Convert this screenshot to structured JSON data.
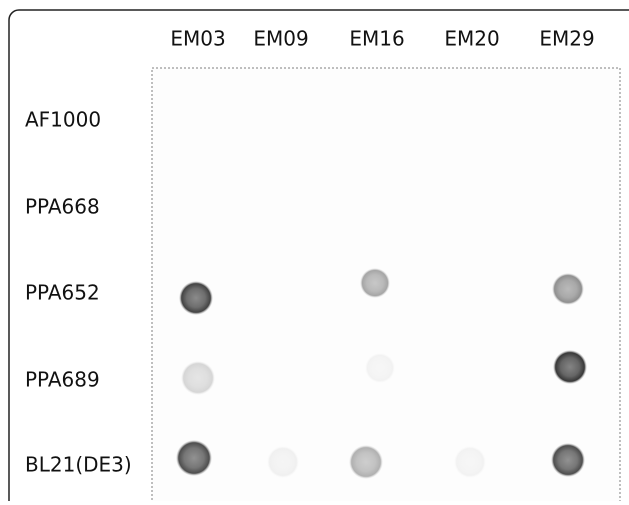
{
  "columns": [
    "EM03",
    "EM09",
    "EM16",
    "EM20",
    "EM29"
  ],
  "rows": [
    "AF1000",
    "PPA668",
    "PPA652",
    "PPA689",
    "BL21(DE3)"
  ]
}
